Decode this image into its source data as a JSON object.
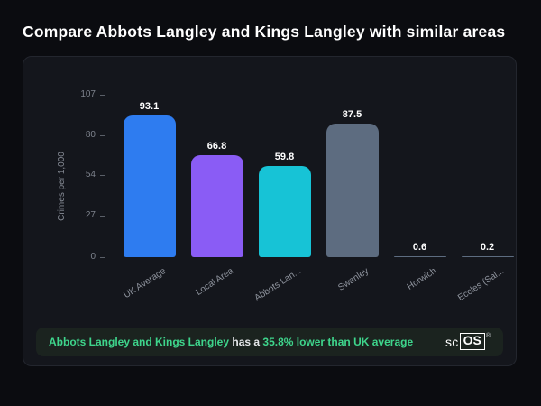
{
  "header": {
    "title": "Compare Abbots Langley and Kings Langley with similar areas"
  },
  "chart_data": {
    "type": "bar",
    "title": "",
    "xlabel": "",
    "ylabel": "Crimes per 1,000",
    "categories": [
      "UK Average",
      "Local Area",
      "Abbots Lan...",
      "Swanley",
      "Horwich",
      "Eccles (Sal..."
    ],
    "values": [
      93.1,
      66.8,
      59.8,
      87.5,
      0.6,
      0.2
    ],
    "value_labels": [
      "93.1",
      "66.8",
      "59.8",
      "87.5",
      "0.6",
      "0.2"
    ],
    "bar_colors": [
      "#2e7cf0",
      "#8a5cf5",
      "#17c3d6",
      "#5d6c80",
      "#5d6c80",
      "#5d6c80"
    ],
    "yticks": [
      0,
      27,
      54,
      80,
      107
    ],
    "ylim": [
      0,
      107
    ],
    "grid": false,
    "legend": false
  },
  "footer": {
    "highlight1": "Abbots Langley and Kings Langley",
    "middle": " has a ",
    "highlight2": "35.8% lower than UK average",
    "logo_prefix": "sc",
    "logo_box": "OS",
    "logo_reg": "®"
  },
  "colors": {
    "background": "#0b0c10",
    "card_background": "#14161c",
    "banner_background": "#1b231f",
    "accent_green": "#3ed58c",
    "bar_blue": "#2e7cf0",
    "bar_purple": "#8a5cf5",
    "bar_cyan": "#17c3d6",
    "bar_slate": "#5d6c80"
  }
}
